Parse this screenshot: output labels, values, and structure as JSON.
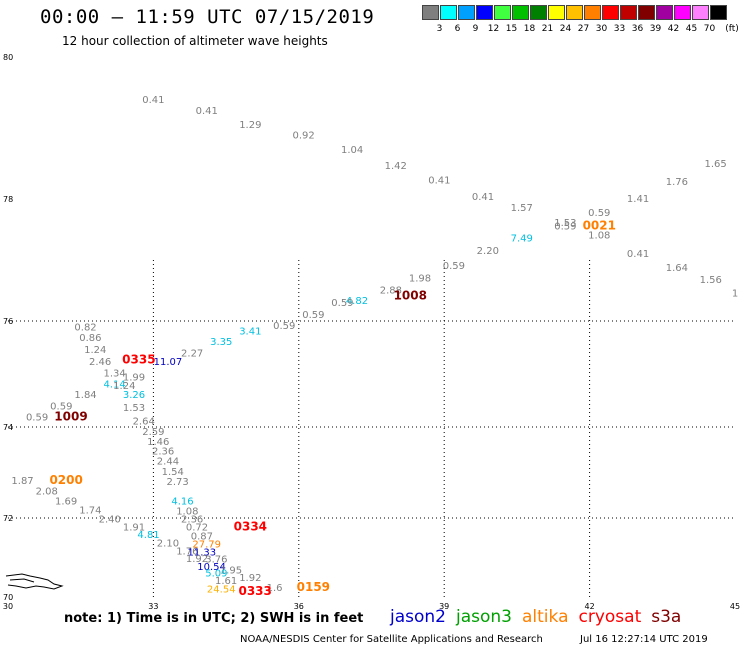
{
  "header": {
    "title": "00:00 – 11:59 UTC 07/15/2019",
    "subtitle": "12 hour collection of altimeter wave heights"
  },
  "legend": {
    "unit_label": "(ft)",
    "bins": [
      {
        "label": "3",
        "color": "#7f7f7f"
      },
      {
        "label": "6",
        "color": "#00ffff"
      },
      {
        "label": "9",
        "color": "#00a0ff"
      },
      {
        "label": "12",
        "color": "#0000ff"
      },
      {
        "label": "15",
        "color": "#40ff40"
      },
      {
        "label": "18",
        "color": "#00c000"
      },
      {
        "label": "21",
        "color": "#008000"
      },
      {
        "label": "24",
        "color": "#ffff00"
      },
      {
        "label": "27",
        "color": "#ffc000"
      },
      {
        "label": "30",
        "color": "#ff8000"
      },
      {
        "label": "33",
        "color": "#ff0000"
      },
      {
        "label": "36",
        "color": "#c00000"
      },
      {
        "label": "39",
        "color": "#800000"
      },
      {
        "label": "42",
        "color": "#a000a0"
      },
      {
        "label": "45",
        "color": "#ff00ff"
      },
      {
        "label": "70",
        "color": "#ff80ff"
      },
      {
        "label": "",
        "color": "#000000"
      }
    ]
  },
  "map": {
    "lon_ticks": [
      "30",
      "33",
      "36",
      "39",
      "42",
      "45"
    ],
    "lat_ticks": [
      "70",
      "72",
      "74",
      "76",
      "78",
      "80"
    ],
    "wave_labels": [
      {
        "v": "0.41",
        "lon": 33.0,
        "lat": 79.35,
        "c": "#7f7f7f"
      },
      {
        "v": "0.41",
        "lon": 34.1,
        "lat": 79.2,
        "c": "#7f7f7f"
      },
      {
        "v": "1.29",
        "lon": 35.0,
        "lat": 79.0,
        "c": "#7f7f7f"
      },
      {
        "v": "0.92",
        "lon": 36.1,
        "lat": 78.85,
        "c": "#7f7f7f"
      },
      {
        "v": "1.04",
        "lon": 37.1,
        "lat": 78.65,
        "c": "#7f7f7f"
      },
      {
        "v": "1.42",
        "lon": 38.0,
        "lat": 78.42,
        "c": "#7f7f7f"
      },
      {
        "v": "0.41",
        "lon": 38.9,
        "lat": 78.22,
        "c": "#7f7f7f"
      },
      {
        "v": "0.41",
        "lon": 39.8,
        "lat": 77.98,
        "c": "#7f7f7f"
      },
      {
        "v": "1.57",
        "lon": 40.6,
        "lat": 77.8,
        "c": "#7f7f7f"
      },
      {
        "v": "1.53",
        "lon": 41.5,
        "lat": 77.56,
        "c": "#7f7f7f"
      },
      {
        "v": "0.59",
        "lon": 42.2,
        "lat": 77.72,
        "c": "#7f7f7f"
      },
      {
        "v": "1.41",
        "lon": 43.0,
        "lat": 77.95,
        "c": "#7f7f7f"
      },
      {
        "v": "1.76",
        "lon": 43.8,
        "lat": 78.2,
        "c": "#7f7f7f"
      },
      {
        "v": "1.65",
        "lon": 44.6,
        "lat": 78.45,
        "c": "#7f7f7f"
      },
      {
        "v": "0.59",
        "lon": 41.5,
        "lat": 77.5,
        "c": "#7f7f7f"
      },
      {
        "v": "1.08",
        "lon": 42.2,
        "lat": 77.35,
        "c": "#7f7f7f"
      },
      {
        "v": "0.41",
        "lon": 43.0,
        "lat": 77.05,
        "c": "#7f7f7f"
      },
      {
        "v": "1.64",
        "lon": 43.8,
        "lat": 76.82,
        "c": "#7f7f7f"
      },
      {
        "v": "1.56",
        "lon": 44.5,
        "lat": 76.62,
        "c": "#7f7f7f"
      },
      {
        "v": "1",
        "lon": 45.0,
        "lat": 76.4,
        "c": "#7f7f7f"
      },
      {
        "v": "7.49",
        "lon": 40.6,
        "lat": 77.3,
        "c": "#00c0e0"
      },
      {
        "v": "2.20",
        "lon": 39.9,
        "lat": 77.1,
        "c": "#7f7f7f"
      },
      {
        "v": "0.59",
        "lon": 39.2,
        "lat": 76.85,
        "c": "#7f7f7f"
      },
      {
        "v": "1.98",
        "lon": 38.5,
        "lat": 76.65,
        "c": "#7f7f7f"
      },
      {
        "v": "2.88",
        "lon": 37.9,
        "lat": 76.45,
        "c": "#7f7f7f"
      },
      {
        "v": "4.82",
        "lon": 37.2,
        "lat": 76.28,
        "c": "#00c0e0"
      },
      {
        "v": "0.59",
        "lon": 36.9,
        "lat": 76.25,
        "c": "#7f7f7f"
      },
      {
        "v": "0.59",
        "lon": 36.3,
        "lat": 76.05,
        "c": "#7f7f7f"
      },
      {
        "v": "0.59",
        "lon": 35.7,
        "lat": 75.85,
        "c": "#7f7f7f"
      },
      {
        "v": "3.41",
        "lon": 35.0,
        "lat": 75.75,
        "c": "#00c0e0"
      },
      {
        "v": "3.35",
        "lon": 34.4,
        "lat": 75.55,
        "c": "#00c0e0"
      },
      {
        "v": "2.27",
        "lon": 33.8,
        "lat": 75.33,
        "c": "#7f7f7f"
      },
      {
        "v": "11.07",
        "lon": 33.3,
        "lat": 75.17,
        "c": "#0000c0"
      },
      {
        "v": "0.82",
        "lon": 31.6,
        "lat": 75.82,
        "c": "#7f7f7f"
      },
      {
        "v": "0.86",
        "lon": 31.7,
        "lat": 75.62,
        "c": "#7f7f7f"
      },
      {
        "v": "1.24",
        "lon": 31.8,
        "lat": 75.4,
        "c": "#7f7f7f"
      },
      {
        "v": "2.46",
        "lon": 31.9,
        "lat": 75.17,
        "c": "#7f7f7f"
      },
      {
        "v": "1.34",
        "lon": 32.2,
        "lat": 74.95,
        "c": "#7f7f7f"
      },
      {
        "v": "1.99",
        "lon": 32.6,
        "lat": 74.88,
        "c": "#7f7f7f"
      },
      {
        "v": "4.14",
        "lon": 32.2,
        "lat": 74.75,
        "c": "#00c0e0"
      },
      {
        "v": "1.24",
        "lon": 32.4,
        "lat": 74.72,
        "c": "#7f7f7f"
      },
      {
        "v": "1.84",
        "lon": 31.6,
        "lat": 74.55,
        "c": "#7f7f7f"
      },
      {
        "v": "3.26",
        "lon": 32.6,
        "lat": 74.55,
        "c": "#00c0e0"
      },
      {
        "v": "0.59",
        "lon": 31.1,
        "lat": 74.33,
        "c": "#7f7f7f"
      },
      {
        "v": "1.53",
        "lon": 32.6,
        "lat": 74.3,
        "c": "#7f7f7f"
      },
      {
        "v": "0.59",
        "lon": 30.6,
        "lat": 74.12,
        "c": "#7f7f7f"
      },
      {
        "v": "2.64",
        "lon": 32.8,
        "lat": 74.05,
        "c": "#7f7f7f"
      },
      {
        "v": "2.59",
        "lon": 33.0,
        "lat": 73.82,
        "c": "#7f7f7f"
      },
      {
        "v": "1.46",
        "lon": 33.1,
        "lat": 73.6,
        "c": "#7f7f7f"
      },
      {
        "v": "2.36",
        "lon": 33.2,
        "lat": 73.4,
        "c": "#7f7f7f"
      },
      {
        "v": "2.44",
        "lon": 33.3,
        "lat": 73.18,
        "c": "#7f7f7f"
      },
      {
        "v": "1.54",
        "lon": 33.4,
        "lat": 72.95,
        "c": "#7f7f7f"
      },
      {
        "v": "2.73",
        "lon": 33.5,
        "lat": 72.72,
        "c": "#7f7f7f"
      },
      {
        "v": "1.87",
        "lon": 30.3,
        "lat": 72.75,
        "c": "#7f7f7f"
      },
      {
        "v": "2.08",
        "lon": 30.8,
        "lat": 72.52,
        "c": "#7f7f7f"
      },
      {
        "v": "1.69",
        "lon": 31.2,
        "lat": 72.3,
        "c": "#7f7f7f"
      },
      {
        "v": "1.74",
        "lon": 31.7,
        "lat": 72.1,
        "c": "#7f7f7f"
      },
      {
        "v": "2.40",
        "lon": 32.1,
        "lat": 71.88,
        "c": "#7f7f7f"
      },
      {
        "v": "1.91",
        "lon": 32.6,
        "lat": 71.68,
        "c": "#7f7f7f"
      },
      {
        "v": "4.16",
        "lon": 33.6,
        "lat": 72.3,
        "c": "#00c0e0"
      },
      {
        "v": "1.08",
        "lon": 33.7,
        "lat": 72.08,
        "c": "#7f7f7f"
      },
      {
        "v": "2.36",
        "lon": 33.8,
        "lat": 71.88,
        "c": "#7f7f7f"
      },
      {
        "v": "0.72",
        "lon": 33.9,
        "lat": 71.68,
        "c": "#7f7f7f"
      },
      {
        "v": "4.81",
        "lon": 32.9,
        "lat": 71.5,
        "c": "#00c0e0"
      },
      {
        "v": "0.87",
        "lon": 34.0,
        "lat": 71.45,
        "c": "#7f7f7f"
      },
      {
        "v": "2.10",
        "lon": 33.3,
        "lat": 71.28,
        "c": "#7f7f7f"
      },
      {
        "v": "27.79",
        "lon": 34.1,
        "lat": 71.25,
        "c": "#ff8000"
      },
      {
        "v": "1.76",
        "lon": 33.7,
        "lat": 71.08,
        "c": "#7f7f7f"
      },
      {
        "v": "11.33",
        "lon": 34.0,
        "lat": 71.05,
        "c": "#0000c0"
      },
      {
        "v": "1.92",
        "lon": 33.9,
        "lat": 70.88,
        "c": "#7f7f7f"
      },
      {
        "v": "3.76",
        "lon": 34.3,
        "lat": 70.87,
        "c": "#7f7f7f"
      },
      {
        "v": "10.54",
        "lon": 34.2,
        "lat": 70.68,
        "c": "#0000c0"
      },
      {
        "v": "1.95",
        "lon": 34.6,
        "lat": 70.6,
        "c": "#7f7f7f"
      },
      {
        "v": "5.09",
        "lon": 34.3,
        "lat": 70.52,
        "c": "#00c0e0"
      },
      {
        "v": "1.92",
        "lon": 35.0,
        "lat": 70.4,
        "c": "#7f7f7f"
      },
      {
        "v": "1.61",
        "lon": 34.5,
        "lat": 70.33,
        "c": "#7f7f7f"
      },
      {
        "v": "24.54",
        "lon": 34.4,
        "lat": 70.12,
        "c": "#ffb000"
      },
      {
        "v": "1.6",
        "lon": 35.5,
        "lat": 70.15,
        "c": "#7f7f7f"
      }
    ],
    "time_labels": [
      {
        "v": "0335",
        "lon": 32.7,
        "lat": 75.2,
        "c": "#ff0000"
      },
      {
        "v": "1009",
        "lon": 31.3,
        "lat": 74.12,
        "c": "#800000"
      },
      {
        "v": "1008",
        "lon": 38.3,
        "lat": 76.35,
        "c": "#800000"
      },
      {
        "v": "0021",
        "lon": 42.2,
        "lat": 77.5,
        "c": "#ff8000"
      },
      {
        "v": "0200",
        "lon": 31.2,
        "lat": 72.75,
        "c": "#ff8000"
      },
      {
        "v": "0334",
        "lon": 35.0,
        "lat": 71.68,
        "c": "#ff0000"
      },
      {
        "v": "0333",
        "lon": 35.1,
        "lat": 70.05,
        "c": "#ff0000"
      },
      {
        "v": "0159",
        "lon": 36.3,
        "lat": 70.15,
        "c": "#ff8000"
      }
    ]
  },
  "footer": {
    "note": "note: 1) Time is in UTC; 2) SWH is in feet",
    "satellites": [
      {
        "name": "jason2",
        "color": "#0000cc"
      },
      {
        "name": "jason3",
        "color": "#00a000"
      },
      {
        "name": "altika",
        "color": "#ff8000"
      },
      {
        "name": "cryosat",
        "color": "#ff0000"
      },
      {
        "name": "s3a",
        "color": "#800000"
      }
    ],
    "credit": "NOAA/NESDIS Center for Satellite Applications and Research",
    "timestamp": "Jul 16 12:27:14 UTC 2019"
  }
}
